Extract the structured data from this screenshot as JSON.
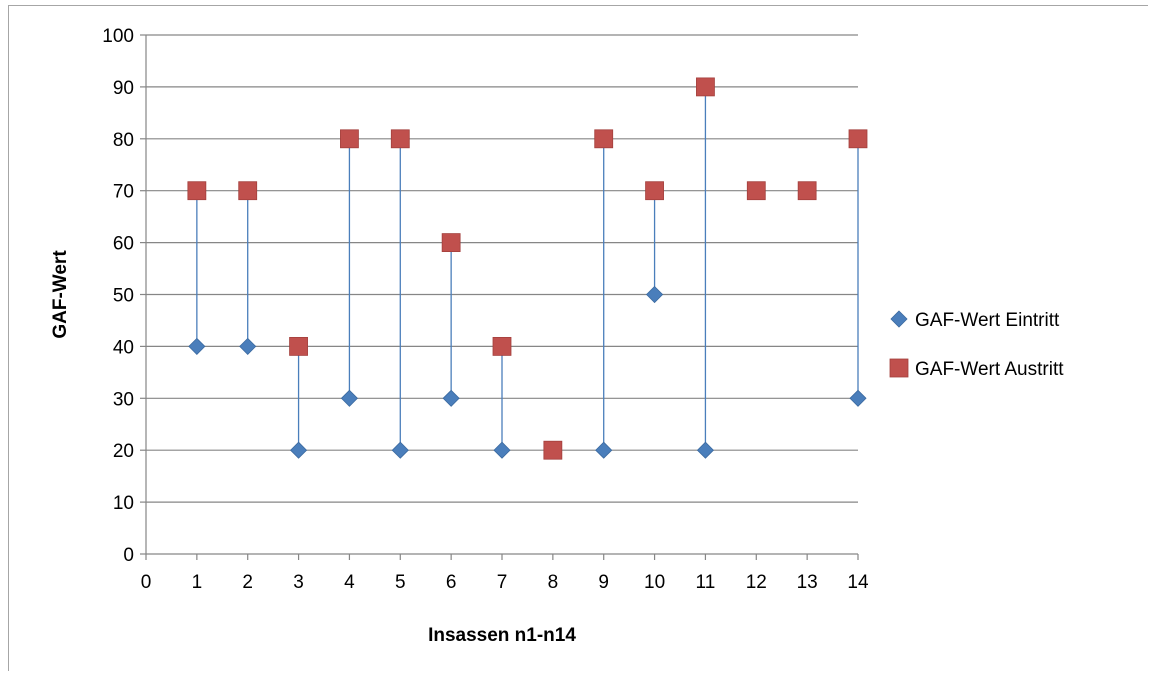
{
  "chart_data": {
    "type": "scatter",
    "xlabel": "Insassen n1-n14",
    "ylabel": "GAF-Wert",
    "xlim": [
      0,
      14
    ],
    "ylim": [
      0,
      100
    ],
    "x_ticks": [
      0,
      1,
      2,
      3,
      4,
      5,
      6,
      7,
      8,
      9,
      10,
      11,
      12,
      13,
      14
    ],
    "y_ticks": [
      0,
      10,
      20,
      30,
      40,
      50,
      60,
      70,
      80,
      90,
      100
    ],
    "grid": "horizontal",
    "legend_position": "right",
    "series": [
      {
        "name": "GAF-Wert Eintritt",
        "marker": "diamond",
        "color": "#4a7ebb",
        "x": [
          1,
          2,
          3,
          4,
          5,
          6,
          7,
          8,
          9,
          10,
          11,
          12,
          13,
          14
        ],
        "values": [
          40,
          40,
          20,
          30,
          20,
          30,
          20,
          20,
          20,
          50,
          20,
          70,
          70,
          30
        ]
      },
      {
        "name": "GAF-Wert Austritt",
        "marker": "square",
        "color": "#c0504d",
        "x": [
          1,
          2,
          3,
          4,
          5,
          6,
          7,
          8,
          9,
          10,
          11,
          12,
          13,
          14
        ],
        "values": [
          70,
          70,
          40,
          80,
          80,
          60,
          40,
          20,
          80,
          70,
          90,
          70,
          70,
          80
        ]
      }
    ],
    "connector_color": "#4a7ebb"
  }
}
